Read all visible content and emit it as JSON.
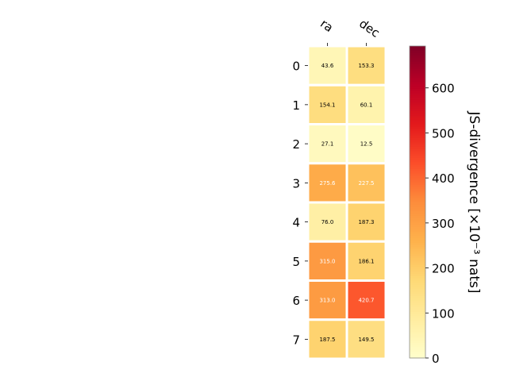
{
  "chart_data": {
    "type": "heatmap",
    "title": "",
    "columns": [
      "ra",
      "dec"
    ],
    "rows": [
      "0",
      "1",
      "2",
      "3",
      "4",
      "5",
      "6",
      "7"
    ],
    "values": [
      [
        43.6,
        153.3
      ],
      [
        154.1,
        60.1
      ],
      [
        27.1,
        12.5
      ],
      [
        275.6,
        227.5
      ],
      [
        76.0,
        187.3
      ],
      [
        315.0,
        186.1
      ],
      [
        313.0,
        420.7
      ],
      [
        187.5,
        149.5
      ]
    ],
    "labels": [
      [
        "43.6",
        "153.3"
      ],
      [
        "154.1",
        "60.1"
      ],
      [
        "27.1",
        "12.5"
      ],
      [
        "275.6",
        "227.5"
      ],
      [
        "76.0",
        "187.3"
      ],
      [
        "315.0",
        "186.1"
      ],
      [
        "313.0",
        "420.7"
      ],
      [
        "187.5",
        "149.5"
      ]
    ],
    "colormap": "YlOrRd",
    "colorbar": {
      "label": "JS-divergence [×10⁻³ nats]",
      "range": [
        0,
        693
      ],
      "ticks": [
        0,
        100,
        200,
        300,
        400,
        500,
        600
      ],
      "tick_labels": [
        "0",
        "100",
        "200",
        "300",
        "400",
        "500",
        "600"
      ]
    },
    "grid": false,
    "legend": "none"
  }
}
